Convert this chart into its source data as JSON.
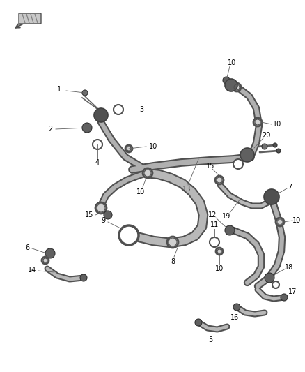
{
  "bg_color": "#ffffff",
  "lc": "#404040",
  "lc2": "#888888",
  "figsize": [
    4.38,
    5.33
  ],
  "dpi": 100,
  "label_fs": 7.0,
  "hose_lw": 5.0,
  "hose_lw2": 3.5,
  "hose_color": "#a0a0a0",
  "hose_edge": "#505050",
  "connector_fill": "#606060",
  "ring_fill": "#ffffff"
}
